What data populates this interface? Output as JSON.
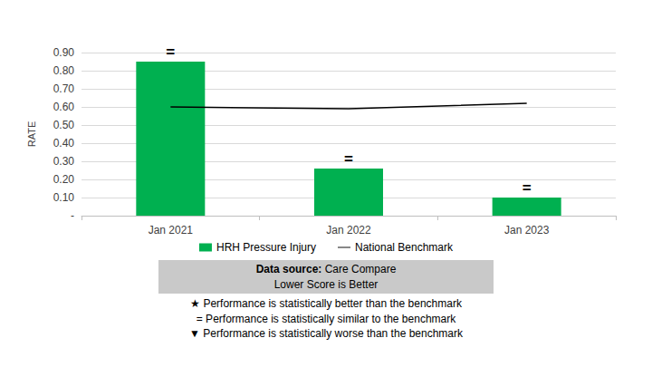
{
  "chart_data": {
    "type": "bar",
    "categories": [
      "Jan 2021",
      "Jan 2022",
      "Jan 2023"
    ],
    "series": [
      {
        "name": "HRH Pressure Injury",
        "type": "bar",
        "color": "#00b050",
        "values": [
          0.85,
          0.26,
          0.1
        ]
      },
      {
        "name": "National Benchmark",
        "type": "line",
        "color": "#000000",
        "values": [
          0.6,
          0.59,
          0.62
        ]
      }
    ],
    "annotations": [
      "=",
      "=",
      "="
    ],
    "y_label": "RATE",
    "ylim": [
      0,
      0.9
    ],
    "yticks": [
      {
        "value": 0,
        "label": "-"
      },
      {
        "value": 0.1,
        "label": "0.10"
      },
      {
        "value": 0.2,
        "label": "0.20"
      },
      {
        "value": 0.3,
        "label": "0.30"
      },
      {
        "value": 0.4,
        "label": "0.40"
      },
      {
        "value": 0.5,
        "label": "0.50"
      },
      {
        "value": 0.6,
        "label": "0.60"
      },
      {
        "value": 0.7,
        "label": "0.70"
      },
      {
        "value": 0.8,
        "label": "0.80"
      },
      {
        "value": 0.9,
        "label": "0.90"
      }
    ],
    "grid": true,
    "legend": "bottom",
    "source": {
      "label": "Data source:",
      "text": "Care Compare"
    },
    "note": "Lower Score is Better",
    "key": [
      {
        "symbol": "★",
        "text": "Performance is statistically better than the benchmark"
      },
      {
        "symbol": "=",
        "text": "Performance is statistically similar to the benchmark"
      },
      {
        "symbol": "▼",
        "text": "Performance is statistically worse than the benchmark"
      }
    ]
  }
}
